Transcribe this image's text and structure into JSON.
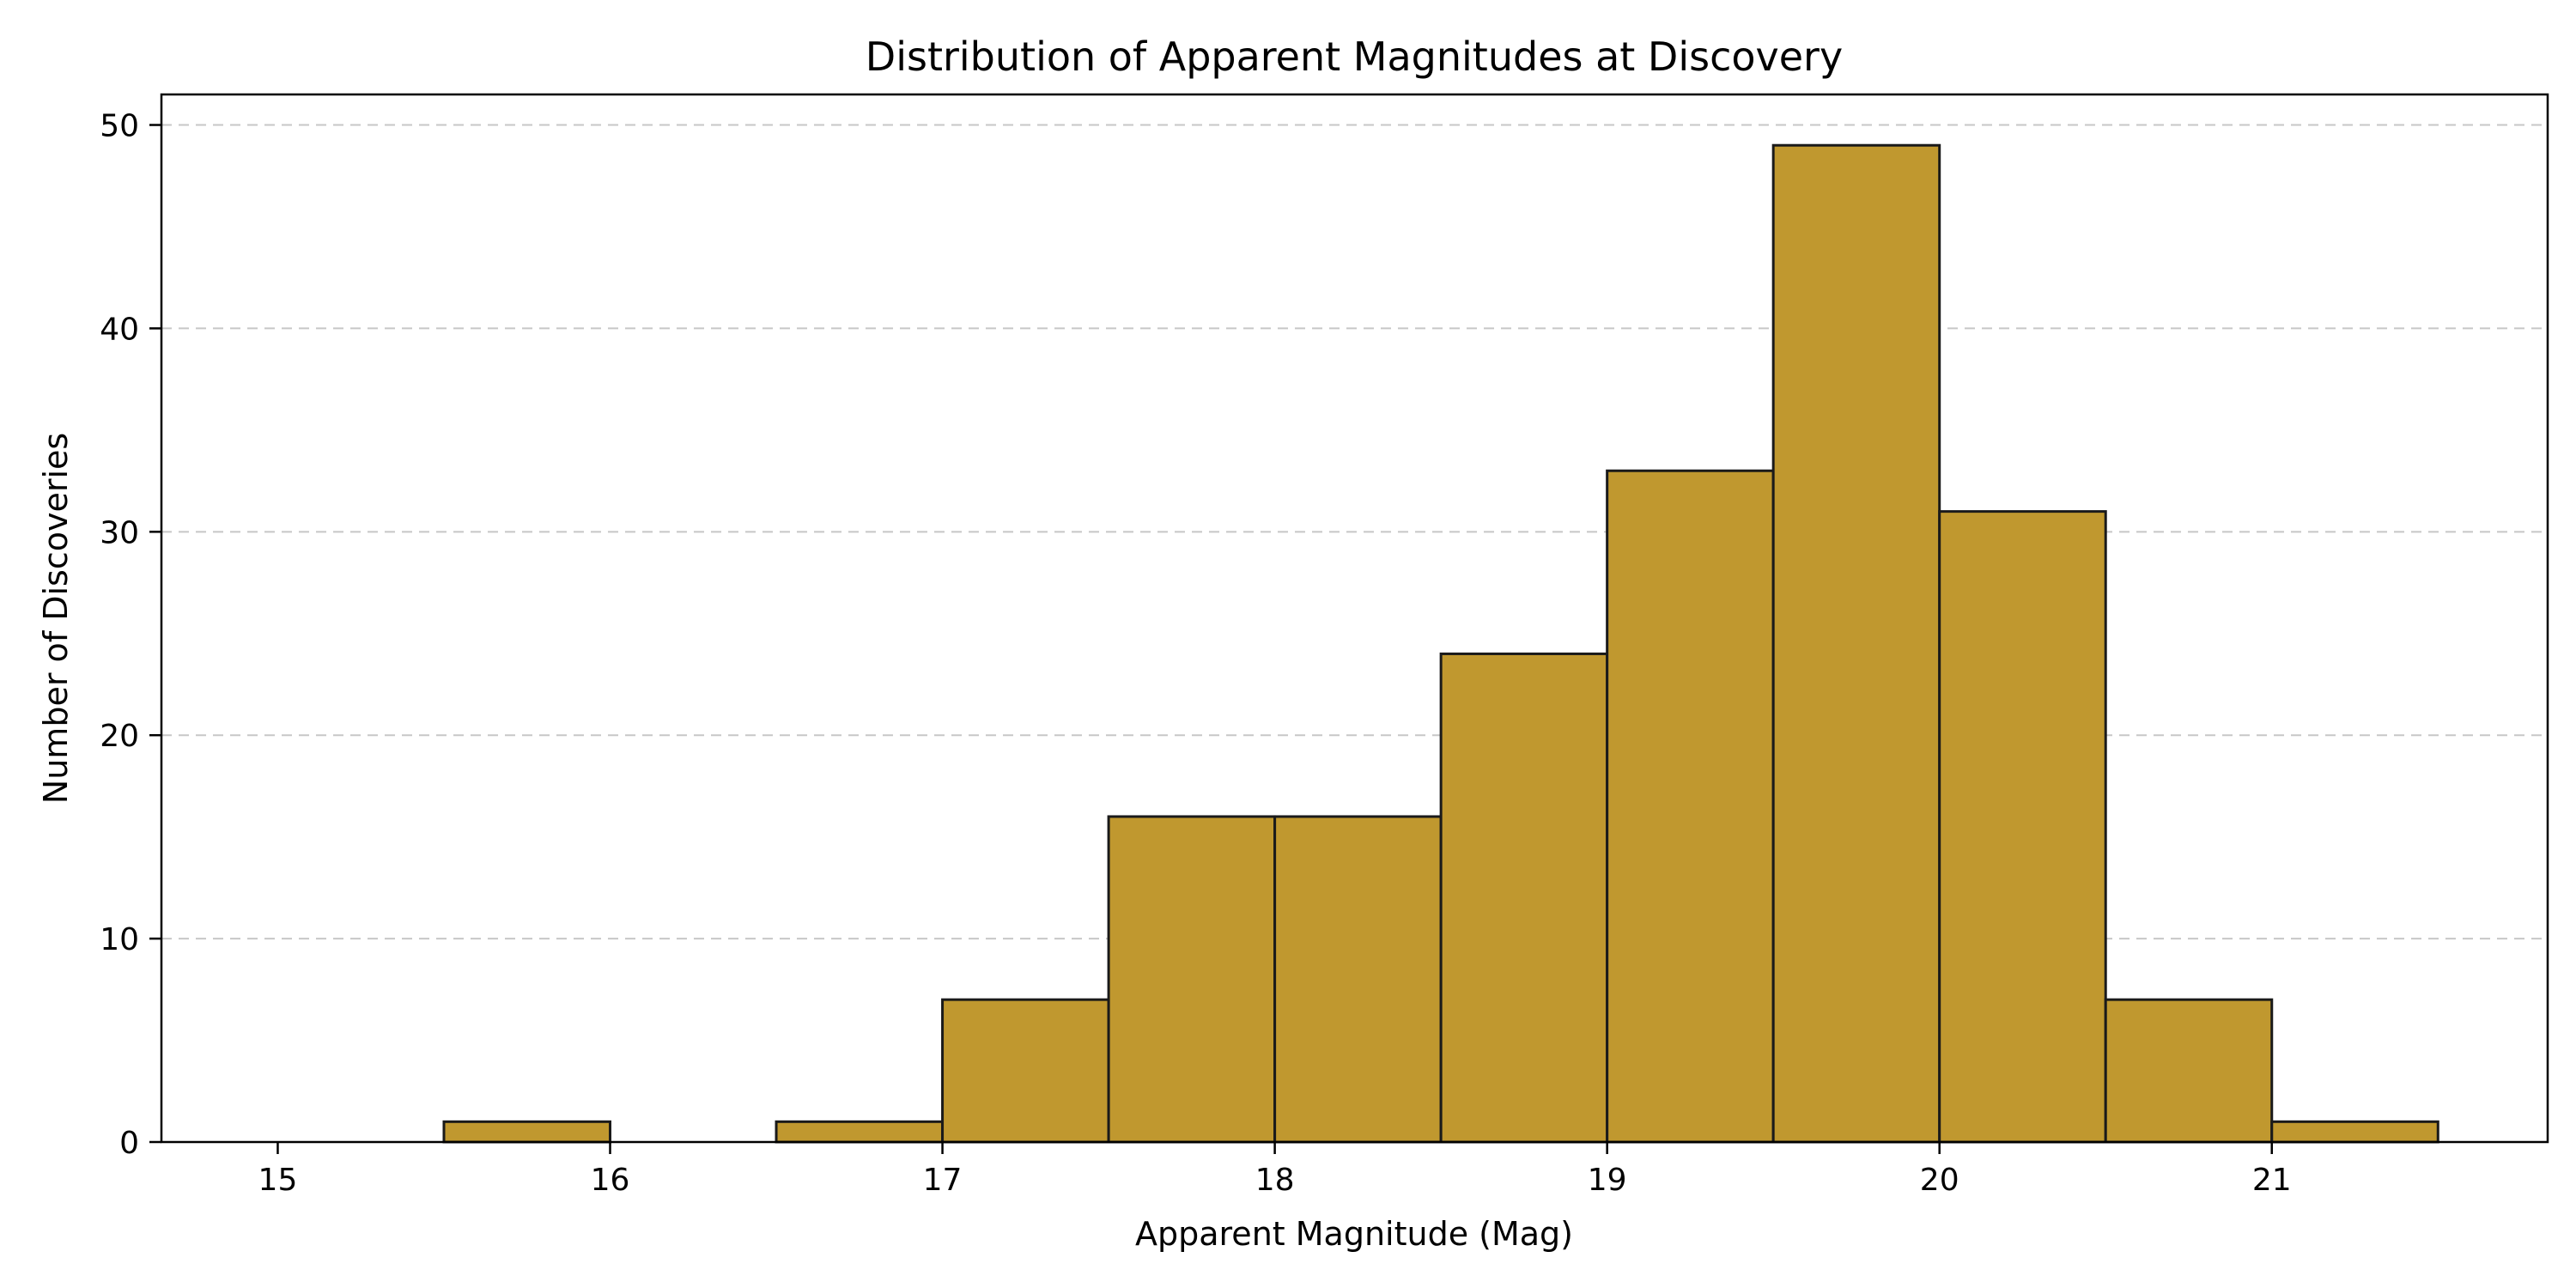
{
  "chart_data": {
    "type": "bar",
    "title": "Distribution of Apparent Magnitudes at Discovery",
    "xlabel": "Apparent Magnitude (Mag)",
    "ylabel": "Number of Discoveries",
    "xlim": [
      14.65,
      21.83
    ],
    "ylim": [
      0,
      51.5
    ],
    "xticks": [
      15,
      16,
      17,
      18,
      19,
      20,
      21
    ],
    "yticks": [
      0,
      10,
      20,
      30,
      40,
      50
    ],
    "grid": "y-dashed",
    "bar_color": "#c0982f",
    "edge_color": "#1a1a1a",
    "bins": [
      {
        "start": 15.0,
        "end": 15.5,
        "count": 0
      },
      {
        "start": 15.5,
        "end": 16.0,
        "count": 1
      },
      {
        "start": 16.0,
        "end": 16.5,
        "count": 0
      },
      {
        "start": 16.5,
        "end": 17.0,
        "count": 1
      },
      {
        "start": 17.0,
        "end": 17.5,
        "count": 7
      },
      {
        "start": 17.5,
        "end": 18.0,
        "count": 16
      },
      {
        "start": 18.0,
        "end": 18.5,
        "count": 16
      },
      {
        "start": 18.5,
        "end": 19.0,
        "count": 24
      },
      {
        "start": 19.0,
        "end": 19.5,
        "count": 33
      },
      {
        "start": 19.5,
        "end": 20.0,
        "count": 49
      },
      {
        "start": 20.0,
        "end": 20.5,
        "count": 31
      },
      {
        "start": 20.5,
        "end": 21.0,
        "count": 7
      },
      {
        "start": 21.0,
        "end": 21.5,
        "count": 1
      }
    ]
  }
}
